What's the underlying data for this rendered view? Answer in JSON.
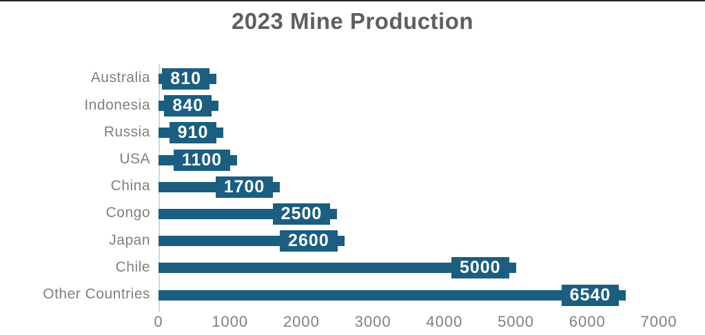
{
  "page": {
    "background": "#ffffff",
    "top_border_color": "#222222"
  },
  "chart_data": {
    "type": "bar",
    "orientation": "horizontal",
    "title": "2023 Mine Production",
    "categories": [
      "Australia",
      "Indonesia",
      "Russia",
      "USA",
      "China",
      "Congo",
      "Japan",
      "Chile",
      "Other Countries"
    ],
    "values": [
      810,
      840,
      910,
      1100,
      1700,
      2500,
      2600,
      5000,
      6540
    ],
    "data_labels": [
      "810",
      "840",
      "910",
      "1100",
      "1700",
      "2500",
      "2600",
      "5000",
      "6540"
    ],
    "xlabel": "",
    "ylabel": "",
    "xlim": [
      0,
      7000
    ],
    "xticks": [
      0,
      1000,
      2000,
      3000,
      4000,
      5000,
      6000,
      7000
    ],
    "xtick_labels": [
      "0",
      "1000",
      "2000",
      "3000",
      "4000",
      "5000",
      "6000",
      "7000"
    ],
    "gridlines": false,
    "legend": "none",
    "colors": {
      "bar": "#1b5e80",
      "data_label_text": "#ffffff",
      "data_label_fill": "#1b5e80",
      "category_text": "#7f7f7f",
      "tick_text": "#7f7f7f",
      "title_text": "#5f5f5f",
      "axis_line": "#d6d6d6"
    }
  }
}
